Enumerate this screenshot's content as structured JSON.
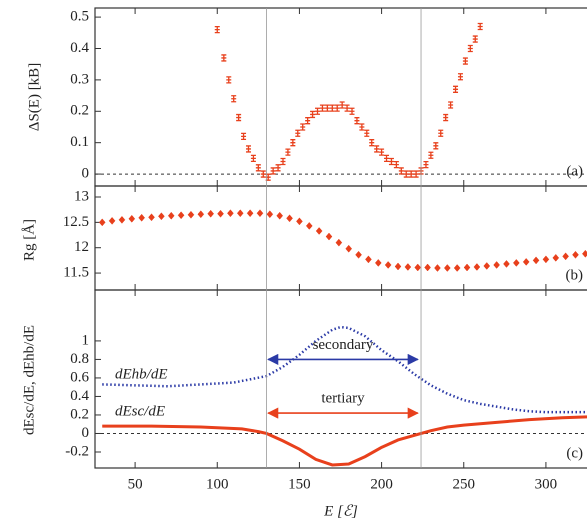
{
  "chart_data": [
    {
      "type": "scatter",
      "panel_label": "(a)",
      "ylabel": "ΔS(E) [kB]",
      "color": "#e8401c",
      "x": [
        100,
        104,
        107,
        110,
        113,
        116,
        119,
        122,
        125,
        128,
        131,
        134,
        137,
        140,
        143,
        146,
        149,
        152,
        155,
        158,
        161,
        164,
        167,
        170,
        173,
        176,
        179,
        182,
        185,
        188,
        191,
        194,
        197,
        200,
        203,
        206,
        209,
        212,
        215,
        218,
        221,
        224,
        227,
        230,
        233,
        236,
        239,
        242,
        245,
        248,
        251,
        254,
        257,
        260
      ],
      "values": [
        0.46,
        0.37,
        0.3,
        0.24,
        0.18,
        0.12,
        0.08,
        0.05,
        0.02,
        0.0,
        -0.01,
        0.01,
        0.02,
        0.04,
        0.07,
        0.1,
        0.13,
        0.15,
        0.17,
        0.19,
        0.2,
        0.21,
        0.21,
        0.21,
        0.21,
        0.22,
        0.21,
        0.2,
        0.17,
        0.15,
        0.13,
        0.1,
        0.08,
        0.07,
        0.05,
        0.04,
        0.03,
        0.01,
        0.0,
        0.0,
        0.0,
        0.01,
        0.03,
        0.06,
        0.09,
        0.13,
        0.18,
        0.22,
        0.27,
        0.31,
        0.36,
        0.4,
        0.43,
        0.47
      ],
      "ylim": [
        -0.038,
        0.529
      ],
      "yticks": [
        0,
        0.1,
        0.2,
        0.3,
        0.4,
        0.5
      ],
      "reference_line": 0
    },
    {
      "type": "scatter",
      "panel_label": "(b)",
      "ylabel": "Rg [Å]",
      "color": "#e8401c",
      "x": [
        30,
        36,
        42,
        48,
        54,
        60,
        66,
        72,
        78,
        84,
        90,
        96,
        102,
        108,
        114,
        120,
        126,
        132,
        138,
        144,
        150,
        156,
        162,
        168,
        174,
        180,
        186,
        192,
        198,
        204,
        210,
        216,
        222,
        228,
        234,
        240,
        246,
        252,
        258,
        264,
        270,
        276,
        282,
        288,
        294,
        300,
        306,
        312,
        318,
        324
      ],
      "values": [
        12.5,
        12.53,
        12.55,
        12.57,
        12.59,
        12.6,
        12.62,
        12.63,
        12.64,
        12.65,
        12.66,
        12.67,
        12.67,
        12.68,
        12.68,
        12.68,
        12.68,
        12.66,
        12.63,
        12.58,
        12.52,
        12.43,
        12.33,
        12.22,
        12.1,
        11.98,
        11.86,
        11.77,
        11.7,
        11.66,
        11.63,
        11.62,
        11.61,
        11.61,
        11.6,
        11.6,
        11.6,
        11.61,
        11.62,
        11.64,
        11.66,
        11.68,
        11.7,
        11.72,
        11.75,
        11.77,
        11.8,
        11.83,
        11.86,
        11.88
      ],
      "ylim": [
        11.166,
        13.217
      ],
      "yticks": [
        11.5,
        12,
        12.5,
        13
      ]
    },
    {
      "type": "line",
      "panel_label": "(c)",
      "ylabel": "dEsc/dE, dEhb/dE",
      "xlabel": "E [ℰ]",
      "xlim": [
        25.6,
        325
      ],
      "xticks": [
        50,
        100,
        150,
        200,
        250,
        300
      ],
      "ylim": [
        -0.373,
        1.55
      ],
      "yticks": [
        -0.2,
        0,
        0.2,
        0.4,
        0.6,
        0.8,
        1
      ],
      "reference_line": 0,
      "vlines": [
        130,
        224
      ],
      "series": [
        {
          "name": "dEhb/dE",
          "color": "#2b3aa6",
          "style": "dotted",
          "x": [
            30,
            50,
            70,
            90,
            110,
            130,
            140,
            150,
            160,
            170,
            175,
            180,
            190,
            200,
            210,
            220,
            230,
            240,
            250,
            260,
            270,
            280,
            290,
            300,
            310,
            325
          ],
          "values": [
            0.53,
            0.52,
            0.51,
            0.53,
            0.55,
            0.62,
            0.72,
            0.85,
            1.0,
            1.12,
            1.15,
            1.14,
            1.05,
            0.9,
            0.78,
            0.64,
            0.52,
            0.43,
            0.36,
            0.32,
            0.29,
            0.26,
            0.24,
            0.23,
            0.23,
            0.23
          ]
        },
        {
          "name": "dEsc/dE",
          "color": "#e8401c",
          "style": "solid",
          "x": [
            30,
            60,
            90,
            115,
            125,
            130,
            140,
            150,
            160,
            170,
            180,
            190,
            200,
            210,
            220,
            230,
            240,
            250,
            270,
            290,
            310,
            325
          ],
          "values": [
            0.08,
            0.08,
            0.07,
            0.05,
            0.02,
            0,
            -0.08,
            -0.17,
            -0.28,
            -0.34,
            -0.33,
            -0.25,
            -0.15,
            -0.07,
            -0.02,
            0.03,
            0.07,
            0.09,
            0.12,
            0.15,
            0.17,
            0.18
          ]
        }
      ],
      "annotations": [
        {
          "text": "secondary",
          "x": [
            131,
            222
          ],
          "y": 0.8,
          "color": "#2b3aa6"
        },
        {
          "text": "tertiary",
          "x": [
            131,
            222
          ],
          "y": 0.22,
          "color": "#e8401c"
        }
      ]
    }
  ]
}
